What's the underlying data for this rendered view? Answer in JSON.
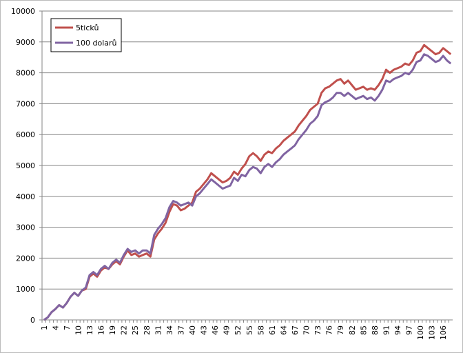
{
  "chart_data": {
    "type": "line",
    "categories": [
      "1",
      null,
      null,
      "4",
      null,
      null,
      "7",
      null,
      null,
      "10",
      null,
      null,
      "13",
      null,
      null,
      "16",
      null,
      null,
      "19",
      null,
      null,
      "22",
      null,
      null,
      "25",
      null,
      null,
      "28",
      null,
      null,
      "31",
      null,
      null,
      "34",
      null,
      null,
      "37",
      null,
      null,
      "40",
      null,
      null,
      "43",
      null,
      null,
      "46",
      null,
      null,
      "49",
      null,
      null,
      "52",
      null,
      null,
      "55",
      null,
      null,
      "58",
      null,
      null,
      "61",
      null,
      null,
      "64",
      null,
      null,
      "67",
      null,
      null,
      "70",
      null,
      null,
      "73",
      null,
      null,
      "76",
      null,
      null,
      "79",
      null,
      null,
      "82",
      null,
      null,
      "85",
      null,
      null,
      "88",
      null,
      null,
      "91",
      null,
      null,
      "94",
      null,
      null,
      "97",
      null,
      null,
      "100",
      null,
      null,
      "103",
      null,
      null,
      "106",
      null,
      null
    ],
    "series": [
      {
        "name": "5ticků",
        "color": "#c0504d",
        "values": [
          0,
          80,
          250,
          350,
          480,
          400,
          550,
          750,
          880,
          780,
          950,
          1000,
          1400,
          1500,
          1400,
          1600,
          1700,
          1650,
          1800,
          1900,
          1800,
          2050,
          2250,
          2100,
          2150,
          2050,
          2100,
          2150,
          2050,
          2600,
          2800,
          2950,
          3150,
          3500,
          3750,
          3700,
          3550,
          3600,
          3700,
          3800,
          4150,
          4250,
          4400,
          4550,
          4750,
          4650,
          4550,
          4450,
          4500,
          4600,
          4800,
          4700,
          4900,
          5050,
          5300,
          5400,
          5300,
          5150,
          5350,
          5450,
          5400,
          5550,
          5650,
          5800,
          5900,
          6000,
          6100,
          6300,
          6450,
          6600,
          6800,
          6900,
          7000,
          7350,
          7500,
          7550,
          7650,
          7750,
          7800,
          7650,
          7750,
          7600,
          7450,
          7500,
          7550,
          7450,
          7500,
          7450,
          7600,
          7800,
          8100,
          8000,
          8100,
          8150,
          8200,
          8300,
          8250,
          8400,
          8650,
          8700,
          8900,
          8800,
          8700,
          8600,
          8650,
          8800,
          8700,
          8600
        ]
      },
      {
        "name": "100 dolarů",
        "color": "#8064a2",
        "values": [
          0,
          80,
          250,
          350,
          480,
          400,
          550,
          750,
          880,
          780,
          950,
          1050,
          1450,
          1550,
          1450,
          1650,
          1750,
          1650,
          1850,
          1950,
          1850,
          2100,
          2300,
          2200,
          2250,
          2150,
          2250,
          2250,
          2150,
          2750,
          2950,
          3100,
          3300,
          3650,
          3850,
          3800,
          3700,
          3750,
          3800,
          3700,
          4000,
          4100,
          4250,
          4400,
          4550,
          4450,
          4350,
          4250,
          4300,
          4350,
          4600,
          4500,
          4700,
          4650,
          4850,
          4950,
          4900,
          4750,
          4950,
          5050,
          4950,
          5100,
          5200,
          5350,
          5450,
          5550,
          5650,
          5850,
          6000,
          6150,
          6350,
          6450,
          6600,
          6950,
          7050,
          7100,
          7200,
          7350,
          7350,
          7250,
          7350,
          7250,
          7150,
          7200,
          7250,
          7150,
          7200,
          7100,
          7250,
          7450,
          7750,
          7700,
          7800,
          7850,
          7900,
          8000,
          7950,
          8100,
          8350,
          8400,
          8600,
          8550,
          8450,
          8350,
          8400,
          8550,
          8400,
          8300
        ]
      }
    ],
    "ylim": [
      0,
      10000
    ],
    "yticks": [
      0,
      1000,
      2000,
      3000,
      4000,
      5000,
      6000,
      7000,
      8000,
      9000,
      10000
    ],
    "grid": true,
    "legend": "upper-left"
  }
}
